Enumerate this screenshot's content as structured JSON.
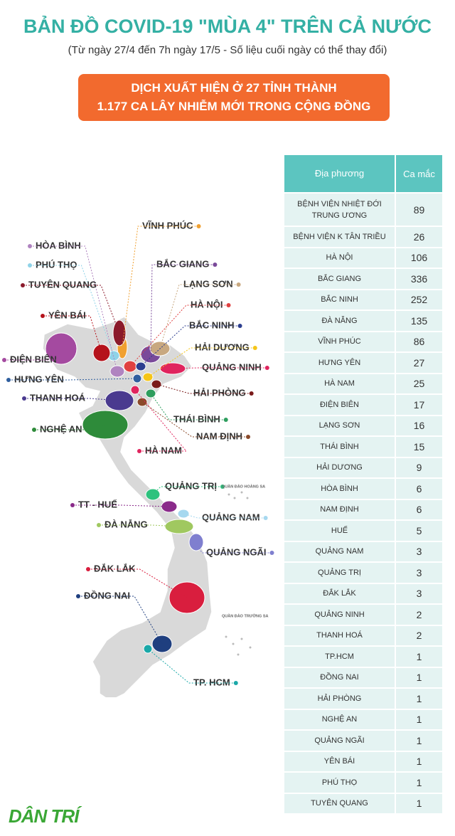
{
  "header": {
    "title": "BẢN ĐỒ COVID-19 \"MÙA 4\" TRÊN CẢ NƯỚC",
    "subtitle": "(Từ ngày 27/4 đến 7h ngày 17/5 - Số liệu cuối ngày có thể thay đổi)"
  },
  "banner": {
    "lines": [
      "DỊCH XUẤT HIỆN Ở 27 TỈNH THÀNH",
      "1.177 CA LÂY NHIỄM MỚI TRONG CỘNG ĐỒNG"
    ]
  },
  "map": {
    "labels": [
      "VĨNH PHÚC",
      "HÒA BÌNH",
      "PHÚ THỌ",
      "TUYÊN QUANG",
      "BẮC GIANG",
      "LẠNG SƠN",
      "YÊN BÁI",
      "HÀ NỘI",
      "BẮC NINH",
      "HẢI DƯƠNG",
      "ĐIỆN BIÊN",
      "QUẢNG NINH",
      "HƯNG YÊN",
      "HẢI PHÒNG",
      "THANH HOÁ",
      "THÁI BÌNH",
      "NGHỆ AN",
      "NAM ĐỊNH",
      "HÀ NAM",
      "QUẢNG TRỊ",
      "TT - HUẾ",
      "QUẢNG NAM",
      "ĐÀ NẴNG",
      "QUẢNG NGÃI",
      "ĐẮK LẮK",
      "ĐỒNG NAI",
      "TP. HCM"
    ],
    "islands": [
      "QUẦN ĐẢO HOÀNG SA",
      "QUẦN ĐẢO TRƯỜNG SA"
    ]
  },
  "table": {
    "columns": [
      "Địa phương",
      "Ca mắc"
    ],
    "rows": [
      [
        "BỆNH VIỆN NHIỆT ĐỚI TRUNG ƯƠNG",
        89
      ],
      [
        "BỆNH VIỆN K TÂN TRIỀU",
        26
      ],
      [
        "HÀ NỘI",
        106
      ],
      [
        "BẮC GIANG",
        336
      ],
      [
        "BẮC NINH",
        252
      ],
      [
        "ĐÀ NẴNG",
        135
      ],
      [
        "VĨNH PHÚC",
        86
      ],
      [
        "HƯNG YÊN",
        27
      ],
      [
        "HÀ NAM",
        25
      ],
      [
        "ĐIỆN BIÊN",
        17
      ],
      [
        "LẠNG SƠN",
        16
      ],
      [
        "THÁI BÌNH",
        15
      ],
      [
        "HẢI DƯƠNG",
        9
      ],
      [
        "HÒA BÌNH",
        6
      ],
      [
        "NAM ĐỊNH",
        6
      ],
      [
        "HUẾ",
        5
      ],
      [
        "QUẢNG NAM",
        3
      ],
      [
        "QUẢNG TRỊ",
        3
      ],
      [
        "ĐẮK LẮK",
        3
      ],
      [
        "QUẢNG NINH",
        2
      ],
      [
        "THANH HOÁ",
        2
      ],
      [
        "TP.HCM",
        1
      ],
      [
        "ĐỒNG NAI",
        1
      ],
      [
        "HẢI PHÒNG",
        1
      ],
      [
        "NGHỆ AN",
        1
      ],
      [
        "QUẢNG NGÃI",
        1
      ],
      [
        "YÊN BÁI",
        1
      ],
      [
        "PHÚ THỌ",
        1
      ],
      [
        "TUYÊN QUANG",
        1
      ]
    ]
  },
  "logo": "DÂN TRÍ"
}
